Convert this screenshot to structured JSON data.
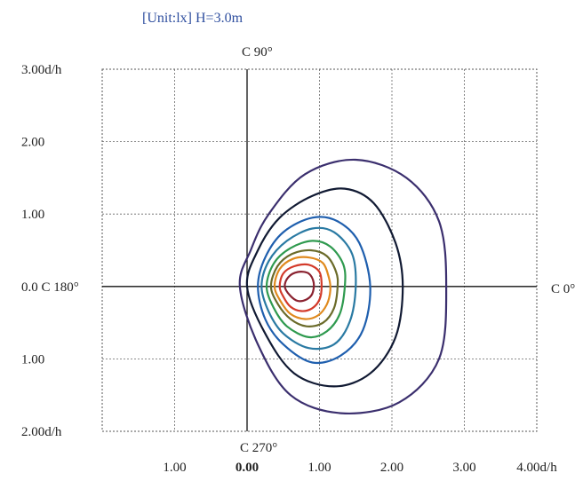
{
  "chart_data": {
    "type": "contour",
    "title": "[Unit:lx]  H=3.0m",
    "x_axis": {
      "tick_labels": [
        "1.00",
        "0.00",
        "1.00",
        "2.00",
        "3.00",
        "4.00d/h"
      ],
      "tick_values": [
        -1,
        0,
        1,
        2,
        3,
        4
      ],
      "range": [
        -2,
        4
      ]
    },
    "y_axis": {
      "tick_labels": [
        "3.00d/h",
        "2.00",
        "1.00",
        "0.0 C 180°",
        "1.00",
        "2.00d/h"
      ],
      "tick_values": [
        3,
        2,
        1,
        0,
        -1,
        -2
      ],
      "range": [
        -2,
        3
      ]
    },
    "direction_labels": {
      "top": "C 90°",
      "right": "C 0°",
      "bottom": "C 270°"
    },
    "grid": "dotted",
    "contours": [
      {
        "color": "#3b2f6e",
        "points": [
          [
            -0.1,
            0.0
          ],
          [
            0.05,
            0.5
          ],
          [
            0.3,
            1.0
          ],
          [
            0.8,
            1.55
          ],
          [
            1.5,
            1.75
          ],
          [
            2.2,
            1.5
          ],
          [
            2.65,
            0.9
          ],
          [
            2.75,
            0.0
          ],
          [
            2.65,
            -1.0
          ],
          [
            2.1,
            -1.6
          ],
          [
            1.3,
            -1.75
          ],
          [
            0.6,
            -1.5
          ],
          [
            0.15,
            -0.8
          ]
        ]
      },
      {
        "color": "#111a33",
        "points": [
          [
            0.0,
            0.0
          ],
          [
            0.15,
            0.5
          ],
          [
            0.45,
            0.95
          ],
          [
            0.9,
            1.25
          ],
          [
            1.35,
            1.35
          ],
          [
            1.75,
            1.15
          ],
          [
            2.05,
            0.6
          ],
          [
            2.15,
            0.0
          ],
          [
            2.05,
            -0.7
          ],
          [
            1.7,
            -1.2
          ],
          [
            1.2,
            -1.38
          ],
          [
            0.65,
            -1.2
          ],
          [
            0.25,
            -0.65
          ]
        ]
      },
      {
        "color": "#1f5fae",
        "points": [
          [
            0.15,
            0.0
          ],
          [
            0.25,
            0.4
          ],
          [
            0.5,
            0.75
          ],
          [
            0.9,
            0.95
          ],
          [
            1.25,
            0.9
          ],
          [
            1.55,
            0.6
          ],
          [
            1.7,
            0.0
          ],
          [
            1.6,
            -0.6
          ],
          [
            1.3,
            -0.95
          ],
          [
            0.9,
            -1.05
          ],
          [
            0.5,
            -0.8
          ],
          [
            0.25,
            -0.45
          ]
        ]
      },
      {
        "color": "#2a7aa3",
        "points": [
          [
            0.2,
            0.0
          ],
          [
            0.3,
            0.35
          ],
          [
            0.55,
            0.63
          ],
          [
            0.9,
            0.8
          ],
          [
            1.2,
            0.75
          ],
          [
            1.45,
            0.45
          ],
          [
            1.5,
            0.0
          ],
          [
            1.42,
            -0.48
          ],
          [
            1.2,
            -0.8
          ],
          [
            0.85,
            -0.85
          ],
          [
            0.5,
            -0.65
          ],
          [
            0.3,
            -0.35
          ]
        ]
      },
      {
        "color": "#2f9a4f",
        "points": [
          [
            0.27,
            0.0
          ],
          [
            0.37,
            0.32
          ],
          [
            0.6,
            0.53
          ],
          [
            0.9,
            0.63
          ],
          [
            1.15,
            0.55
          ],
          [
            1.33,
            0.3
          ],
          [
            1.35,
            0.0
          ],
          [
            1.28,
            -0.38
          ],
          [
            1.1,
            -0.62
          ],
          [
            0.85,
            -0.7
          ],
          [
            0.55,
            -0.55
          ],
          [
            0.37,
            -0.3
          ]
        ]
      },
      {
        "color": "#6b6b2a",
        "points": [
          [
            0.33,
            0.0
          ],
          [
            0.42,
            0.28
          ],
          [
            0.62,
            0.45
          ],
          [
            0.88,
            0.5
          ],
          [
            1.1,
            0.42
          ],
          [
            1.23,
            0.2
          ],
          [
            1.25,
            0.0
          ],
          [
            1.2,
            -0.3
          ],
          [
            1.05,
            -0.5
          ],
          [
            0.82,
            -0.55
          ],
          [
            0.6,
            -0.45
          ],
          [
            0.43,
            -0.25
          ]
        ]
      },
      {
        "color": "#e08a1e",
        "points": [
          [
            0.38,
            0.0
          ],
          [
            0.45,
            0.24
          ],
          [
            0.63,
            0.38
          ],
          [
            0.86,
            0.4
          ],
          [
            1.05,
            0.32
          ],
          [
            1.13,
            0.12
          ],
          [
            1.15,
            -0.05
          ],
          [
            1.1,
            -0.25
          ],
          [
            0.98,
            -0.4
          ],
          [
            0.8,
            -0.45
          ],
          [
            0.6,
            -0.38
          ],
          [
            0.46,
            -0.2
          ]
        ]
      },
      {
        "color": "#d33a2a",
        "points": [
          [
            0.45,
            0.0
          ],
          [
            0.5,
            0.18
          ],
          [
            0.65,
            0.28
          ],
          [
            0.85,
            0.3
          ],
          [
            1.0,
            0.2
          ],
          [
            1.03,
            0.0
          ],
          [
            1.0,
            -0.18
          ],
          [
            0.9,
            -0.3
          ],
          [
            0.75,
            -0.34
          ],
          [
            0.6,
            -0.28
          ],
          [
            0.5,
            -0.14
          ]
        ]
      },
      {
        "color": "#8a2230",
        "points": [
          [
            0.52,
            0.0
          ],
          [
            0.57,
            0.13
          ],
          [
            0.7,
            0.2
          ],
          [
            0.85,
            0.18
          ],
          [
            0.92,
            0.05
          ],
          [
            0.9,
            -0.1
          ],
          [
            0.82,
            -0.18
          ],
          [
            0.7,
            -0.2
          ],
          [
            0.59,
            -0.12
          ]
        ]
      }
    ]
  }
}
